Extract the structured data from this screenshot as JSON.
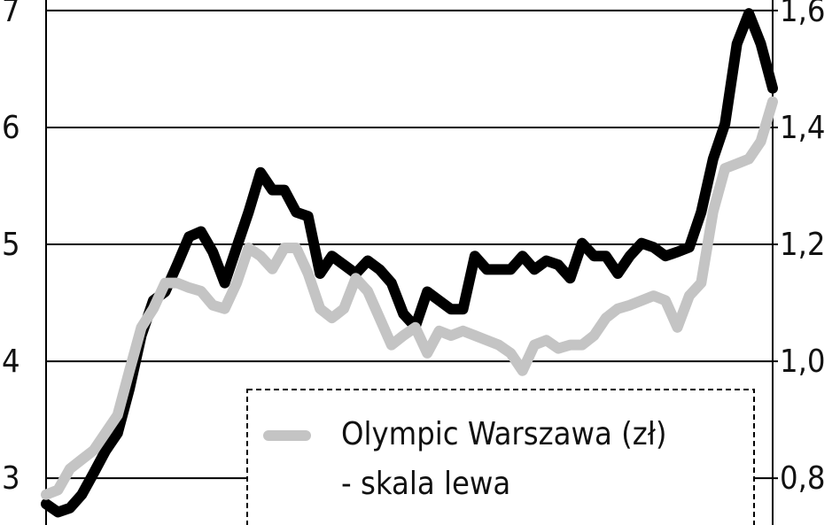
{
  "chart_data": {
    "type": "line",
    "series": [
      {
        "color": "#000000",
        "axis": "y2",
        "values": [
          0.756,
          0.742,
          0.749,
          0.772,
          0.809,
          0.847,
          0.877,
          0.953,
          1.044,
          1.104,
          1.119,
          1.165,
          1.213,
          1.222,
          1.187,
          1.134,
          1.195,
          1.255,
          1.323,
          1.293,
          1.293,
          1.255,
          1.248,
          1.15,
          1.18,
          1.165,
          1.15,
          1.172,
          1.157,
          1.134,
          1.081,
          1.059,
          1.119,
          1.104,
          1.089,
          1.089,
          1.18,
          1.157,
          1.157,
          1.157,
          1.18,
          1.157,
          1.172,
          1.165,
          1.142,
          1.202,
          1.18,
          1.18,
          1.15,
          1.18,
          1.202,
          1.195,
          1.18,
          1.187,
          1.195,
          1.255,
          1.346,
          1.406,
          1.543,
          1.595,
          1.543,
          1.467
        ]
      },
      {
        "name": "Olympic Warszawa (zł)",
        "note": "- skala lewa",
        "color": "#c4c4c4",
        "values": [
          2.86,
          2.9,
          3.08,
          3.16,
          3.24,
          3.39,
          3.54,
          3.92,
          4.29,
          4.45,
          4.67,
          4.67,
          4.63,
          4.6,
          4.48,
          4.45,
          4.67,
          4.97,
          4.9,
          4.79,
          4.97,
          4.97,
          4.75,
          4.45,
          4.37,
          4.45,
          4.71,
          4.6,
          4.37,
          4.14,
          4.22,
          4.29,
          4.07,
          4.26,
          4.22,
          4.26,
          4.22,
          4.18,
          4.14,
          4.07,
          3.92,
          4.14,
          4.18,
          4.11,
          4.14,
          4.14,
          4.22,
          4.37,
          4.45,
          4.48,
          4.52,
          4.56,
          4.52,
          4.29,
          4.56,
          4.67,
          5.28,
          5.65,
          5.69,
          5.73,
          5.88,
          6.22
        ]
      }
    ],
    "ylim": [
      2.6,
      7.09
    ],
    "yticks": [
      3,
      4,
      5,
      6,
      7
    ],
    "y2lim": [
      0.72,
      1.618
    ],
    "y2ticks": [
      {
        "value": 0.8,
        "label": "0,8"
      },
      {
        "value": 1.0,
        "label": "1,0"
      },
      {
        "value": 1.2,
        "label": "1,2"
      },
      {
        "value": 1.4,
        "label": "1,4"
      },
      {
        "value": 1.6,
        "label": "1,6"
      }
    ],
    "grid": true
  }
}
